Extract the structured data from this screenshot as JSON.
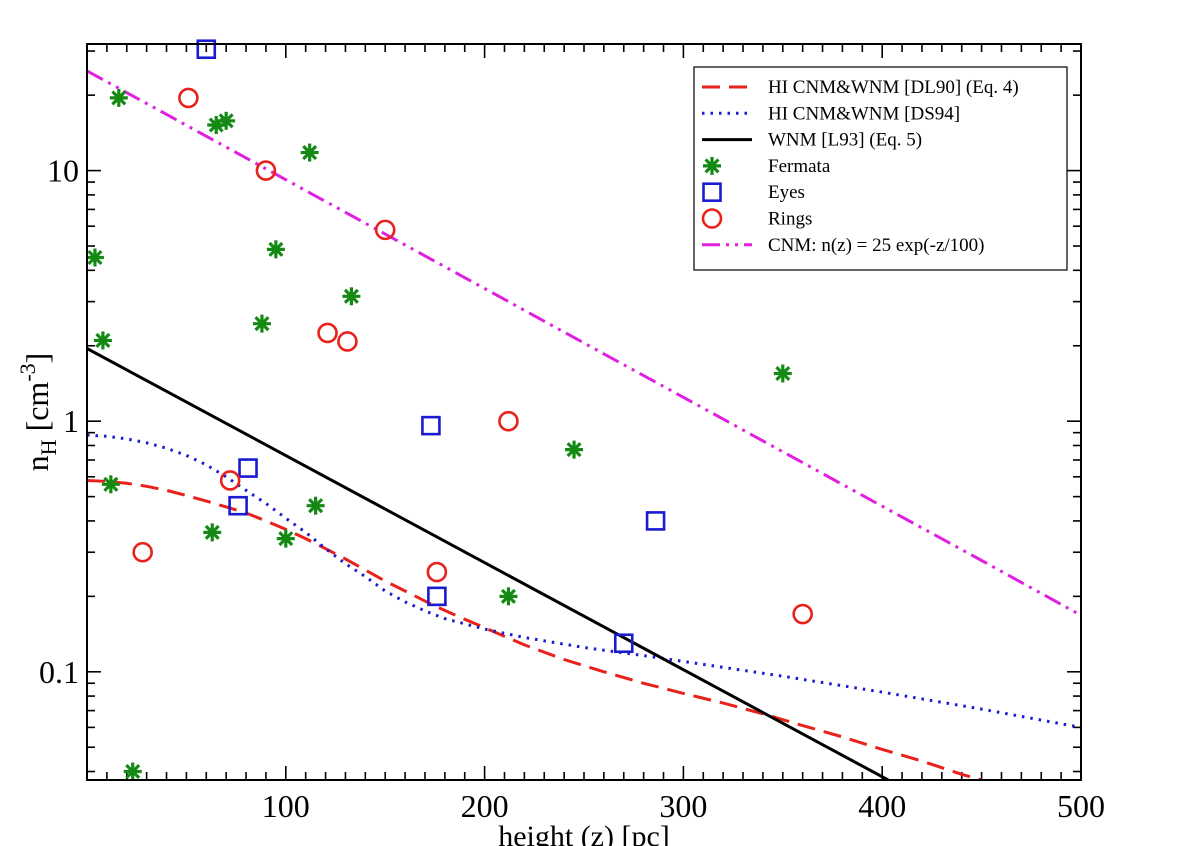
{
  "chart_data": {
    "type": "scatter",
    "xlabel": "height (z) [pc]",
    "ylabel_main": "n",
    "ylabel_sub": "H",
    "ylabel_unit_open": " [cm",
    "ylabel_unit_sup": "-3",
    "ylabel_unit_close": "]",
    "xlim": [
      0,
      500
    ],
    "ylim": [
      0.037,
      32
    ],
    "yscale": "log",
    "x_ticks": [
      {
        "value": 100,
        "label": "100"
      },
      {
        "value": 200,
        "label": "200"
      },
      {
        "value": 300,
        "label": "300"
      },
      {
        "value": 400,
        "label": "400"
      },
      {
        "value": 500,
        "label": "500"
      }
    ],
    "y_ticks": [
      {
        "value": 0.1,
        "label": "0.1"
      },
      {
        "value": 1,
        "label": "1"
      },
      {
        "value": 10,
        "label": "10"
      }
    ],
    "legend_position": "top-right",
    "series": [
      {
        "name": "HI CNM&WNM [DL90] (Eq. 4)",
        "kind": "line",
        "style": "dashed",
        "color": "#e8211a",
        "x": [
          0,
          10,
          20,
          30,
          40,
          50,
          60,
          70,
          80,
          90,
          100,
          110,
          120,
          130,
          140,
          150,
          160,
          175,
          190,
          200,
          220,
          240,
          260,
          280,
          300,
          320,
          340,
          360,
          380,
          400,
          420,
          440,
          450
        ],
        "y": [
          0.58,
          0.575,
          0.565,
          0.55,
          0.53,
          0.505,
          0.48,
          0.455,
          0.43,
          0.4,
          0.37,
          0.34,
          0.31,
          0.282,
          0.255,
          0.23,
          0.21,
          0.183,
          0.162,
          0.15,
          0.128,
          0.112,
          0.1,
          0.09,
          0.082,
          0.075,
          0.068,
          0.061,
          0.055,
          0.049,
          0.044,
          0.039,
          0.037
        ]
      },
      {
        "name": "HI CNM&WNM [DS94]",
        "kind": "line",
        "style": "dotted",
        "color": "#1a1ad0",
        "x": [
          0,
          10,
          20,
          30,
          40,
          50,
          60,
          70,
          80,
          90,
          100,
          110,
          120,
          130,
          140,
          150,
          160,
          170,
          180,
          200,
          220,
          250,
          280,
          300,
          350,
          400,
          450,
          500
        ],
        "y": [
          0.88,
          0.87,
          0.85,
          0.82,
          0.78,
          0.73,
          0.67,
          0.6,
          0.53,
          0.47,
          0.41,
          0.36,
          0.31,
          0.27,
          0.24,
          0.21,
          0.19,
          0.175,
          0.163,
          0.148,
          0.137,
          0.125,
          0.116,
          0.11,
          0.096,
          0.083,
          0.071,
          0.06
        ]
      },
      {
        "name": "WNM [L93] (Eq. 5)",
        "kind": "line",
        "style": "solid",
        "color": "#000000",
        "x": [
          0,
          403
        ],
        "y": [
          1.95,
          0.037
        ]
      },
      {
        "name": "Fermata",
        "kind": "marker",
        "marker": "asterisk",
        "color": "#148a14",
        "x": [
          4,
          8,
          12,
          16,
          23,
          63,
          65,
          70,
          88,
          95,
          100,
          112,
          115,
          133,
          212,
          245,
          350
        ],
        "y": [
          4.5,
          2.1,
          0.56,
          19.5,
          0.04,
          0.36,
          15.2,
          15.8,
          2.45,
          4.85,
          0.34,
          11.8,
          0.46,
          3.15,
          0.2,
          0.77,
          1.55
        ]
      },
      {
        "name": "Eyes",
        "kind": "marker",
        "marker": "square",
        "color": "#1a1ad0",
        "x": [
          60,
          76,
          81,
          173,
          176,
          270,
          286
        ],
        "y": [
          30.5,
          0.46,
          0.65,
          0.96,
          0.2,
          0.13,
          0.4
        ]
      },
      {
        "name": "Rings",
        "kind": "marker",
        "marker": "circle",
        "color": "#e8211a",
        "x": [
          28,
          51,
          72,
          90,
          121,
          131,
          150,
          176,
          212,
          360
        ],
        "y": [
          0.3,
          19.5,
          0.58,
          10.0,
          2.25,
          2.08,
          5.8,
          0.25,
          1.0,
          0.17
        ]
      },
      {
        "name": "CNM: n(z) = 25 exp(-z/100)",
        "kind": "line",
        "style": "dashdotdot",
        "color": "#e020e0",
        "x": [
          0,
          50,
          100,
          150,
          200,
          250,
          300,
          350,
          400,
          450,
          500
        ],
        "y": [
          25,
          15.16,
          9.197,
          5.578,
          3.383,
          2.052,
          1.245,
          0.755,
          0.458,
          0.278,
          0.168
        ]
      }
    ]
  }
}
